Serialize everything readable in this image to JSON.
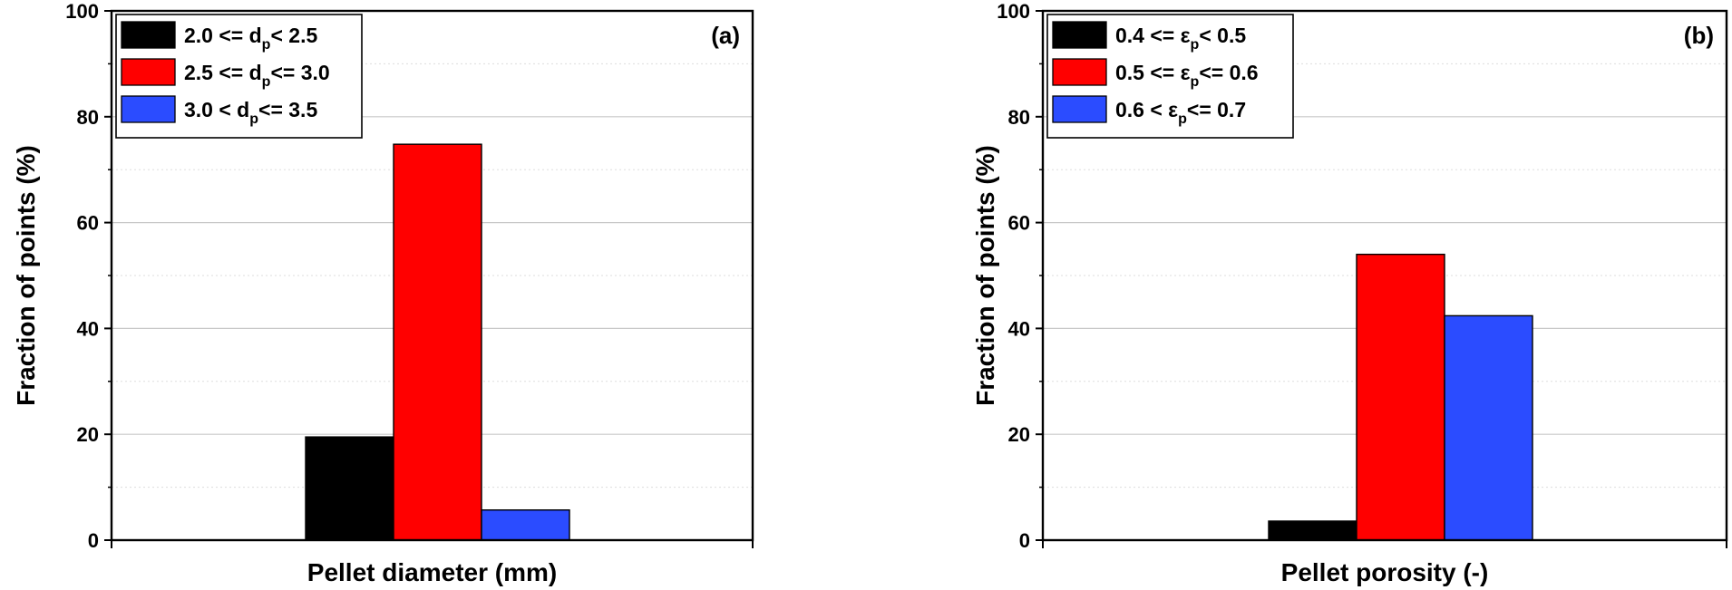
{
  "chart_data": [
    {
      "type": "bar",
      "panel_label": "(a)",
      "xlabel": "Pellet diameter (mm)",
      "ylabel": "Fraction of points (%)",
      "ylim": [
        0,
        100
      ],
      "yticks": [
        0,
        20,
        40,
        60,
        80,
        100
      ],
      "grid": true,
      "legend_position": "top-left",
      "series": [
        {
          "legend": {
            "pre": "2.0 <= d",
            "sub": "p",
            "post": "< 2.5"
          },
          "color": "#000000",
          "value": 19.5
        },
        {
          "legend": {
            "pre": "2.5 <= d",
            "sub": "p",
            "post": "<= 3.0"
          },
          "color": "#ff0000",
          "value": 74.8
        },
        {
          "legend": {
            "pre": "3.0 < d",
            "sub": "p",
            "post": "<= 3.5"
          },
          "color": "#2b4cff",
          "value": 5.7
        }
      ]
    },
    {
      "type": "bar",
      "panel_label": "(b)",
      "xlabel": "Pellet porosity (-)",
      "ylabel": "Fraction of points (%)",
      "ylim": [
        0,
        100
      ],
      "yticks": [
        0,
        20,
        40,
        60,
        80,
        100
      ],
      "grid": true,
      "legend_position": "top-left",
      "series": [
        {
          "legend": {
            "pre": "0.4 <= ε",
            "sub": "p",
            "post": "< 0.5"
          },
          "color": "#000000",
          "value": 3.6
        },
        {
          "legend": {
            "pre": "0.5 <= ε",
            "sub": "p",
            "post": "<= 0.6"
          },
          "color": "#ff0000",
          "value": 54.0
        },
        {
          "legend": {
            "pre": "0.6 < ε",
            "sub": "p",
            "post": "<= 0.7"
          },
          "color": "#2b4cff",
          "value": 42.4
        }
      ]
    }
  ]
}
